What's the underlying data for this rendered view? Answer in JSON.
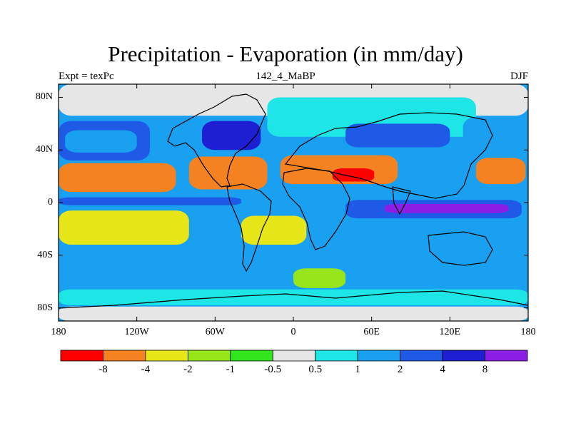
{
  "chart_data": {
    "type": "heatmap",
    "title": "Precipitation - Evaporation (in mm/day)",
    "subtitle_left": "Expt = texPc",
    "subtitle_center": "142_4_MaBP",
    "subtitle_right": "DJF",
    "xlim": [
      -180,
      180
    ],
    "ylim": [
      -90,
      90
    ],
    "x_ticks": [
      {
        "value": -180,
        "label": "180"
      },
      {
        "value": -120,
        "label": "120W"
      },
      {
        "value": -60,
        "label": "60W"
      },
      {
        "value": 0,
        "label": "0"
      },
      {
        "value": 60,
        "label": "60E"
      },
      {
        "value": 120,
        "label": "120E"
      },
      {
        "value": 180,
        "label": "180"
      }
    ],
    "y_ticks": [
      {
        "value": 80,
        "label": "80N"
      },
      {
        "value": 40,
        "label": "40N"
      },
      {
        "value": 0,
        "label": "0"
      },
      {
        "value": -40,
        "label": "40S"
      },
      {
        "value": -80,
        "label": "80S"
      }
    ],
    "colorbar": {
      "levels": [
        "-8",
        "-4",
        "-2",
        "-1",
        "-0.5",
        "0.5",
        "1",
        "2",
        "4",
        "8"
      ],
      "colors": [
        "#ff0000",
        "#f58220",
        "#e6e619",
        "#96e619",
        "#32e61e",
        "#e6e6e6",
        "#1ee6e6",
        "#1aa0f0",
        "#1e5ae6",
        "#1e1ed2",
        "#8c1ee6"
      ]
    },
    "regions": [
      {
        "name": "north-polar-cap",
        "level": 5,
        "lon": [
          -180,
          180
        ],
        "lat": [
          66,
          90
        ]
      },
      {
        "name": "north-pacific-band",
        "level": 8,
        "lon": [
          -180,
          -110
        ],
        "lat": [
          32,
          62
        ]
      },
      {
        "name": "north-pacific-mid",
        "level": 7,
        "lon": [
          -175,
          -120
        ],
        "lat": [
          38,
          55
        ]
      },
      {
        "name": "north-atlantic-storm",
        "level": 9,
        "lon": [
          -70,
          -25
        ],
        "lat": [
          40,
          62
        ]
      },
      {
        "name": "eurasia-cyan",
        "level": 6,
        "lon": [
          -20,
          140
        ],
        "lat": [
          50,
          80
        ]
      },
      {
        "name": "siberia-blue",
        "level": 8,
        "lon": [
          40,
          120
        ],
        "lat": [
          42,
          60
        ]
      },
      {
        "name": "north-pacific-west",
        "level": 7,
        "lon": [
          130,
          180
        ],
        "lat": [
          38,
          65
        ]
      },
      {
        "name": "north-pacific-subtropic",
        "level": 1,
        "lon": [
          -180,
          -90
        ],
        "lat": [
          8,
          30
        ]
      },
      {
        "name": "north-atlantic-subtropic",
        "level": 1,
        "lon": [
          -80,
          -20
        ],
        "lat": [
          10,
          35
        ]
      },
      {
        "name": "sahara-dry",
        "level": 1,
        "lon": [
          -10,
          80
        ],
        "lat": [
          14,
          36
        ]
      },
      {
        "name": "arabia-very-dry",
        "level": 0,
        "lon": [
          30,
          62
        ],
        "lat": [
          16,
          26
        ]
      },
      {
        "name": "west-pacific-dry",
        "level": 1,
        "lon": [
          140,
          178
        ],
        "lat": [
          14,
          34
        ]
      },
      {
        "name": "itcz-east",
        "level": 8,
        "lon": [
          40,
          175
        ],
        "lat": [
          -12,
          2
        ]
      },
      {
        "name": "itcz-core",
        "level": 10,
        "lon": [
          70,
          165
        ],
        "lat": [
          -8,
          -1
        ]
      },
      {
        "name": "equatorial-pacific-wet",
        "level": 8,
        "lon": [
          -180,
          -40
        ],
        "lat": [
          -2,
          4
        ]
      },
      {
        "name": "south-pacific-subtropic",
        "level": 2,
        "lon": [
          -180,
          -80
        ],
        "lat": [
          -32,
          -6
        ]
      },
      {
        "name": "south-atlantic-subtropic",
        "level": 2,
        "lon": [
          -40,
          10
        ],
        "lat": [
          -32,
          -10
        ]
      },
      {
        "name": "southern-ocean-blue",
        "level": 7,
        "lon": [
          -180,
          180
        ],
        "lat": [
          -65,
          -45
        ]
      },
      {
        "name": "southern-ocean-cyan",
        "level": 6,
        "lon": [
          -180,
          180
        ],
        "lat": [
          -78,
          -66
        ]
      },
      {
        "name": "antarctic-land",
        "level": 5,
        "lon": [
          -180,
          180
        ],
        "lat": [
          -90,
          -79
        ]
      },
      {
        "name": "south-africa-green",
        "level": 3,
        "lon": [
          0,
          40
        ],
        "lat": [
          -65,
          -50
        ]
      }
    ]
  }
}
